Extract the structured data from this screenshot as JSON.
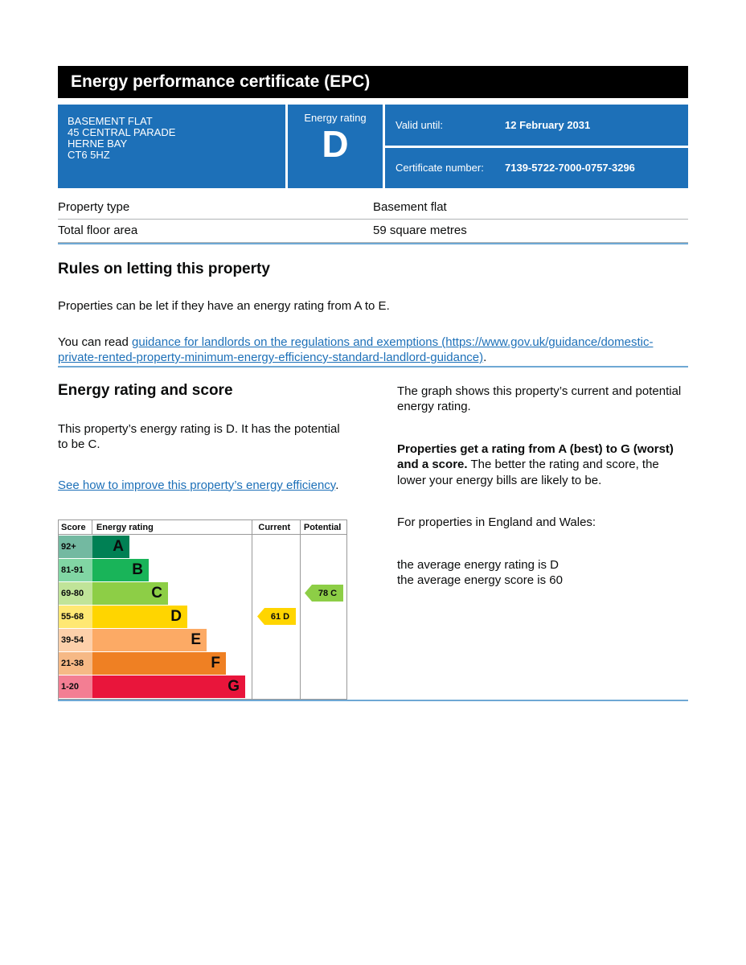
{
  "page": {
    "title": "Energy performance certificate (EPC)"
  },
  "colors": {
    "banner_blue": "#1d70b8",
    "link_blue": "#1d70b8",
    "divider_blue": "#6ea8d4",
    "table_border_gray": "#b1b4b6"
  },
  "banner": {
    "address_lines": [
      "BASEMENT FLAT",
      "45 CENTRAL PARADE",
      "HERNE BAY",
      "CT6 5HZ"
    ],
    "energy_rating_label": "Energy rating",
    "energy_rating_value": "D",
    "valid_until_label": "Valid until:",
    "valid_until_value": "12 February 2031",
    "certificate_number_label": "Certificate number:",
    "certificate_number_value": "7139-5722-7000-0757-3296"
  },
  "property_details": {
    "rows": [
      {
        "label": "Property type",
        "value": "Basement flat"
      },
      {
        "label": "Total floor area",
        "value": "59 square metres"
      }
    ]
  },
  "rules_section": {
    "heading": "Rules on letting this property",
    "paragraph1": "Properties can be let if they have an energy rating from A to E.",
    "paragraph2_prefix": "You can read ",
    "paragraph2_link": "guidance for landlords on the regulations and exemptions (https://www.gov.uk/guidance/domestic-private-rented-property-minimum-energy-efficiency-standard-landlord-guidance)",
    "paragraph2_suffix": "."
  },
  "rating_section": {
    "heading": "Energy rating and score",
    "intro": "This property’s energy rating is D. It has the potential to be C.",
    "improve_link": "See how to improve this property’s energy efficiency",
    "improve_suffix": ".",
    "graph_intro": "The graph shows this property’s current and potential energy rating.",
    "explain_bold": "Properties get a rating from A (best) to G (worst) and a score.",
    "explain_rest": " The better the rating and score, the lower your energy bills are likely to be.",
    "england_wales": "For properties in England and Wales:",
    "average_rating": "the average energy rating is D",
    "average_score": "the average energy score is 60"
  },
  "chart_data": {
    "type": "bar",
    "title": "Energy efficiency rating graph",
    "headers": {
      "score": "Score",
      "rating": "Energy rating",
      "current": "Current",
      "potential": "Potential"
    },
    "bands": [
      {
        "score_range": "92+",
        "letter": "A",
        "color": "#008054",
        "tint": "#73b9a1"
      },
      {
        "score_range": "81-91",
        "letter": "B",
        "color": "#19b459",
        "tint": "#81d6a4"
      },
      {
        "score_range": "69-80",
        "letter": "C",
        "color": "#8dce46",
        "tint": "#c0e499"
      },
      {
        "score_range": "55-68",
        "letter": "D",
        "color": "#ffd500",
        "tint": "#ffe873"
      },
      {
        "score_range": "39-54",
        "letter": "E",
        "color": "#fcaa65",
        "tint": "#fdd0aa"
      },
      {
        "score_range": "21-38",
        "letter": "F",
        "color": "#ef8023",
        "tint": "#f6b986"
      },
      {
        "score_range": "1-20",
        "letter": "G",
        "color": "#e9153b",
        "tint": "#f37e93"
      }
    ],
    "current": {
      "score": 61,
      "letter": "D",
      "label": "61 D",
      "band_index": 3,
      "color": "#ffd500"
    },
    "potential": {
      "score": 78,
      "letter": "C",
      "label": "78 C",
      "band_index": 2,
      "color": "#8dce46"
    }
  }
}
